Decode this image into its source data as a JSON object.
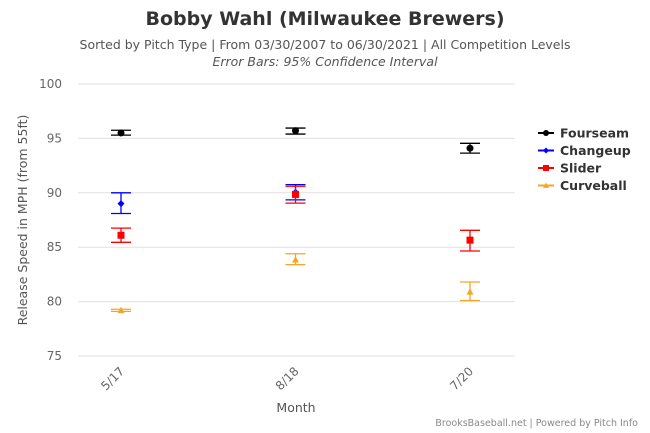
{
  "title": "Bobby Wahl (Milwaukee Brewers)",
  "subtitle": "Sorted by Pitch Type | From 03/30/2007 to 06/30/2021 | All Competition Levels",
  "subtitle2": "Error Bars: 95% Confidence Interval",
  "credit": "BrooksBaseball.net | Powered by Pitch Info",
  "chart_data": {
    "type": "scatter",
    "title": "Bobby Wahl (Milwaukee Brewers)",
    "xlabel": "Month",
    "ylabel": "Release Speed in MPH (from 55ft)",
    "categories": [
      "5/17",
      "8/18",
      "7/20"
    ],
    "ylim": [
      75,
      100
    ],
    "yticks": [
      "75",
      "80",
      "85",
      "90",
      "95",
      "100"
    ],
    "grid": true,
    "legend": "right",
    "error_bars": "95% confidence interval",
    "series": [
      {
        "name": "Fourseam",
        "color": "#000000",
        "marker": "circle",
        "values": [
          95.5,
          95.7,
          94.1
        ],
        "low": [
          95.3,
          95.4,
          93.65
        ],
        "high": [
          95.75,
          95.95,
          94.55
        ]
      },
      {
        "name": "Changeup",
        "color": "#0000ff",
        "marker": "diamond",
        "values": [
          89.0,
          90.05,
          null
        ],
        "low": [
          88.1,
          89.35,
          null
        ],
        "high": [
          90.0,
          90.75,
          null
        ]
      },
      {
        "name": "Slider",
        "color": "#ff0000",
        "marker": "square",
        "values": [
          86.1,
          89.85,
          85.65
        ],
        "low": [
          85.45,
          89.05,
          84.65
        ],
        "high": [
          86.75,
          90.6,
          86.55
        ]
      },
      {
        "name": "Curveball",
        "color": "#f5a623",
        "marker": "triangle",
        "values": [
          79.2,
          83.85,
          80.9
        ],
        "low": [
          79.1,
          83.4,
          80.1
        ],
        "high": [
          79.3,
          84.4,
          81.8
        ]
      }
    ]
  }
}
